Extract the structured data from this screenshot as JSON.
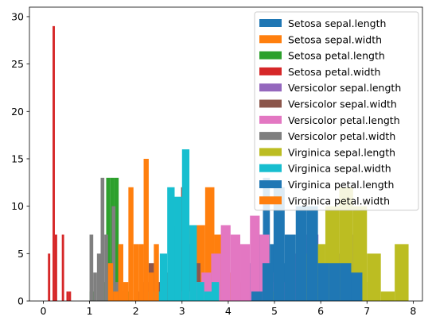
{
  "chart_data": {
    "type": "bar",
    "title": "",
    "xlabel": "",
    "ylabel": "",
    "xlim": [
      -0.3,
      8.2
    ],
    "ylim": [
      0,
      31
    ],
    "xticks": [
      0,
      1,
      2,
      3,
      4,
      5,
      6,
      7,
      8
    ],
    "yticks": [
      0,
      5,
      10,
      15,
      20,
      25,
      30
    ],
    "grid": false,
    "legend": "upper-right",
    "series": [
      {
        "name": "Setosa sepal.length",
        "color": "#1f77b4",
        "bin_width": 0.15,
        "bins": [
          [
            4.3,
            1
          ],
          [
            4.45,
            4
          ],
          [
            4.6,
            7
          ],
          [
            4.75,
            13
          ],
          [
            4.9,
            6
          ],
          [
            5.05,
            9
          ],
          [
            5.2,
            4
          ],
          [
            5.35,
            2
          ],
          [
            5.5,
            2
          ],
          [
            5.65,
            2
          ]
        ]
      },
      {
        "name": "Setosa sepal.width",
        "color": "#ff7f0e",
        "bin_width": 0.2,
        "bins": [
          [
            2.3,
            1
          ],
          [
            2.5,
            1
          ],
          [
            2.7,
            2
          ],
          [
            2.9,
            4
          ],
          [
            3.1,
            8
          ],
          [
            3.3,
            8
          ],
          [
            3.5,
            12
          ],
          [
            3.7,
            7
          ],
          [
            3.9,
            3
          ],
          [
            4.1,
            2
          ]
        ]
      },
      {
        "name": "Setosa petal.length",
        "color": "#2ca02c",
        "bin_width": 0.09,
        "bins": [
          [
            1.0,
            1
          ],
          [
            1.09,
            0
          ],
          [
            1.18,
            2
          ],
          [
            1.27,
            2
          ],
          [
            1.36,
            13
          ],
          [
            1.45,
            13
          ],
          [
            1.54,
            13
          ],
          [
            1.63,
            4
          ],
          [
            1.72,
            1
          ],
          [
            1.81,
            1
          ]
        ]
      },
      {
        "name": "Setosa petal.width",
        "color": "#d62728",
        "bin_width": 0.05,
        "bins": [
          [
            0.1,
            5
          ],
          [
            0.15,
            0
          ],
          [
            0.2,
            29
          ],
          [
            0.25,
            7
          ],
          [
            0.3,
            0
          ],
          [
            0.35,
            0
          ],
          [
            0.4,
            7
          ],
          [
            0.45,
            0
          ],
          [
            0.5,
            1
          ],
          [
            0.55,
            1
          ]
        ]
      },
      {
        "name": "Versicolor sepal.length",
        "color": "#9467bd",
        "bin_width": 0.21,
        "bins": [
          [
            4.9,
            3
          ],
          [
            5.11,
            2
          ],
          [
            5.32,
            5
          ],
          [
            5.53,
            7
          ],
          [
            5.74,
            7
          ],
          [
            5.95,
            4
          ],
          [
            6.16,
            6
          ],
          [
            6.37,
            5
          ],
          [
            6.58,
            7
          ],
          [
            6.79,
            2
          ]
        ]
      },
      {
        "name": "Versicolor sepal.width",
        "color": "#8c564b",
        "bin_width": 0.14,
        "bins": [
          [
            2.0,
            1
          ],
          [
            2.14,
            2
          ],
          [
            2.28,
            4
          ],
          [
            2.42,
            2
          ],
          [
            2.56,
            3
          ],
          [
            2.7,
            8
          ],
          [
            2.84,
            8
          ],
          [
            2.98,
            12
          ],
          [
            3.12,
            6
          ],
          [
            3.26,
            4
          ]
        ]
      },
      {
        "name": "Versicolor petal.length",
        "color": "#e377c2",
        "bin_width": 0.21,
        "bins": [
          [
            3.0,
            1
          ],
          [
            3.21,
            2
          ],
          [
            3.42,
            3
          ],
          [
            3.63,
            5
          ],
          [
            3.84,
            8
          ],
          [
            4.05,
            7
          ],
          [
            4.26,
            6
          ],
          [
            4.47,
            9
          ],
          [
            4.68,
            7
          ],
          [
            4.89,
            2
          ]
        ]
      },
      {
        "name": "Versicolor petal.width",
        "color": "#7f7f7f",
        "bin_width": 0.08,
        "bins": [
          [
            1.0,
            7
          ],
          [
            1.08,
            3
          ],
          [
            1.16,
            5
          ],
          [
            1.24,
            13
          ],
          [
            1.32,
            7
          ],
          [
            1.4,
            3
          ],
          [
            1.48,
            10
          ],
          [
            1.56,
            2
          ],
          [
            1.64,
            1
          ],
          [
            1.72,
            1
          ]
        ]
      },
      {
        "name": "Virginica sepal.length",
        "color": "#bcbd22",
        "bin_width": 0.3,
        "bins": [
          [
            4.9,
            1
          ],
          [
            5.2,
            0
          ],
          [
            5.5,
            5
          ],
          [
            5.8,
            6
          ],
          [
            6.1,
            10
          ],
          [
            6.4,
            12
          ],
          [
            6.7,
            10
          ],
          [
            7.0,
            5
          ],
          [
            7.3,
            1
          ],
          [
            7.6,
            6
          ]
        ]
      },
      {
        "name": "Virginica sepal.width",
        "color": "#17becf",
        "bin_width": 0.16,
        "bins": [
          [
            2.2,
            1
          ],
          [
            2.36,
            1
          ],
          [
            2.52,
            5
          ],
          [
            2.68,
            12
          ],
          [
            2.84,
            11
          ],
          [
            3.0,
            16
          ],
          [
            3.16,
            8
          ],
          [
            3.32,
            2
          ],
          [
            3.48,
            1
          ],
          [
            3.64,
            2
          ]
        ]
      },
      {
        "name": "Virginica petal.length",
        "color": "#1f77b4",
        "bin_width": 0.24,
        "bins": [
          [
            4.5,
            1
          ],
          [
            4.74,
            4
          ],
          [
            4.98,
            12
          ],
          [
            5.22,
            7
          ],
          [
            5.46,
            10
          ],
          [
            5.7,
            10
          ],
          [
            5.94,
            4
          ],
          [
            6.18,
            4
          ],
          [
            6.42,
            4
          ],
          [
            6.66,
            3
          ]
        ]
      },
      {
        "name": "Virginica petal.width",
        "color": "#ff7f0e",
        "bin_width": 0.11,
        "bins": [
          [
            1.4,
            4
          ],
          [
            1.51,
            1
          ],
          [
            1.62,
            6
          ],
          [
            1.73,
            2
          ],
          [
            1.84,
            12
          ],
          [
            1.95,
            6
          ],
          [
            2.06,
            6
          ],
          [
            2.17,
            15
          ],
          [
            2.28,
            3
          ],
          [
            2.39,
            6
          ]
        ]
      }
    ]
  }
}
